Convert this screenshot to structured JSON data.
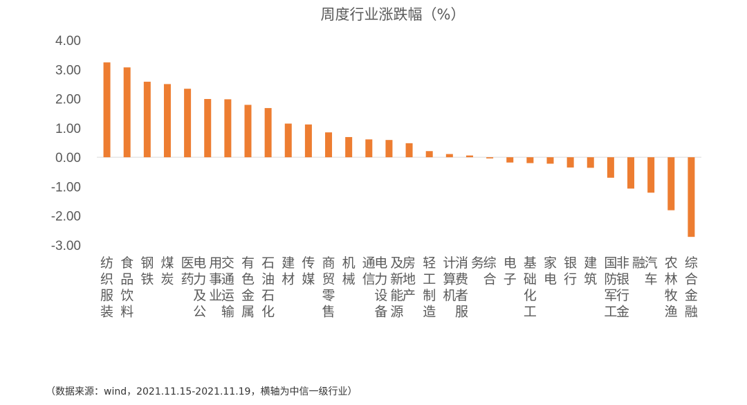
{
  "chart_data": {
    "type": "bar",
    "title": "周度行业涨跌幅（%）",
    "categories": [
      "纺织服装",
      "食品饮料",
      "钢铁",
      "煤炭",
      "医药",
      "电力及公用事业",
      "交通运输",
      "有色金属",
      "石油石化",
      "建材",
      "传媒",
      "商贸零售",
      "机械",
      "通信",
      "电力设备及新能源",
      "房地产",
      "轻工制造",
      "计算机",
      "消费者服务",
      "综合",
      "电子",
      "基础化工",
      "家电",
      "银行",
      "建筑",
      "国防军工",
      "非银行金融",
      "汽车",
      "农林牧渔",
      "综合金融"
    ],
    "values": [
      3.24,
      3.07,
      2.58,
      2.5,
      2.34,
      1.99,
      1.98,
      1.79,
      1.68,
      1.15,
      1.12,
      0.85,
      0.69,
      0.61,
      0.59,
      0.48,
      0.21,
      0.11,
      0.06,
      -0.04,
      -0.18,
      -0.2,
      -0.22,
      -0.35,
      -0.36,
      -0.7,
      -1.07,
      -1.21,
      -1.81,
      -2.72
    ],
    "yticks": [
      "4.00",
      "3.00",
      "2.00",
      "1.00",
      "0.00",
      "-1.00",
      "-2.00",
      "-3.00"
    ],
    "ylim": [
      -3,
      4
    ],
    "xlabel": "",
    "ylabel": "",
    "bar_color": "#ED7D31",
    "axis_color": "#D9D9D9"
  },
  "source_note": "（数据来源：wind，2021.11.15-2021.11.19，横轴为中信一级行业）"
}
